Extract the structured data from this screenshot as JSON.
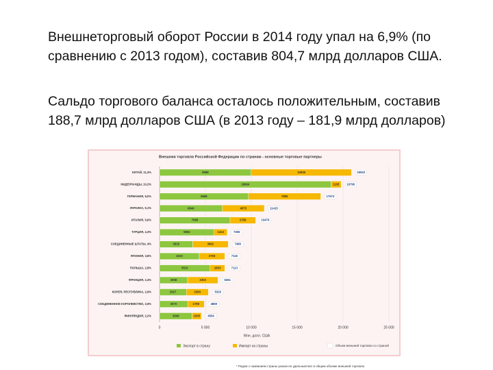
{
  "text": {
    "paragraph_1": "Внешнеторговый оборот России в 2014 году упал на 6,9% (по сравнению с 2013 годом), составив 804,7 млрд долларов США.",
    "paragraph_2": "Сальдо торгового баланса осталось положительным, составив 188,7 млрд долларов США (в 2013 году – 181,9 млрд долларов)"
  },
  "chart_data": {
    "type": "stacked_barh",
    "title": "Внешняя торговля Российской Федерации по странам - основные торговые партнеры",
    "categories": [
      "КИТАЙ, 11,3%",
      "НИДЕРЛАНДЫ, 10,2%",
      "ГЕРМАНИЯ, 9,0%",
      "УКРАИНА, 5,1%",
      "ИТАЛИЯ, 5,6%",
      "ТУРЦИЯ, 4,3%",
      "СОЕДИНЕННЫЕ ШТАТЫ, 4%",
      "ЯПОНИЯ, 3,8%",
      "ПОЛЬША, 2,8%",
      "ФРАНЦИЯ, 2,4%",
      "КОРЕЯ, РЕСПУБЛИКА, 2,9%",
      "СОЕДИНЕННОЕ КОРОЛЕВСТВО, 2,6%",
      "ФИНЛЯНДИЯ, 2,2%"
    ],
    "series": [
      {
        "name": "Экспорт в страну",
        "color": "#8dc63f",
        "values": [
          9988,
          18684,
          9688,
          6840,
          7688,
          5952,
          3618,
          4323,
          5510,
          3058,
          2927,
          3070,
          3549
        ]
      },
      {
        "name": "Импорт из страны",
        "color": "#f6b800",
        "values": [
          10935,
          1105,
          7885,
          4575,
          2788,
          1413,
          3862,
          2793,
          1603,
          3303,
          2393,
          1799,
          1005
        ]
      }
    ],
    "totals": {
      "name": "Объем внешней торговли со страной",
      "values": [
        20922,
        19790,
        17573,
        11415,
        10476,
        7365,
        7480,
        7116,
        7113,
        6361,
        5320,
        4869,
        4554
      ]
    },
    "xlabel": "Млн. долл. США",
    "xlim": [
      0,
      25000
    ],
    "xticks": [
      0,
      {
        "value": 5000,
        "label": "5 000"
      },
      {
        "value": 10000,
        "label": "10 000"
      },
      {
        "value": 15000,
        "label": "15 000"
      },
      {
        "value": 20000,
        "label": "20 000"
      },
      {
        "value": 25000,
        "label": "25 000"
      }
    ],
    "footnote": "* Рядом с названием страны указан ее удельный вес в общем объеме внешней торговли"
  }
}
